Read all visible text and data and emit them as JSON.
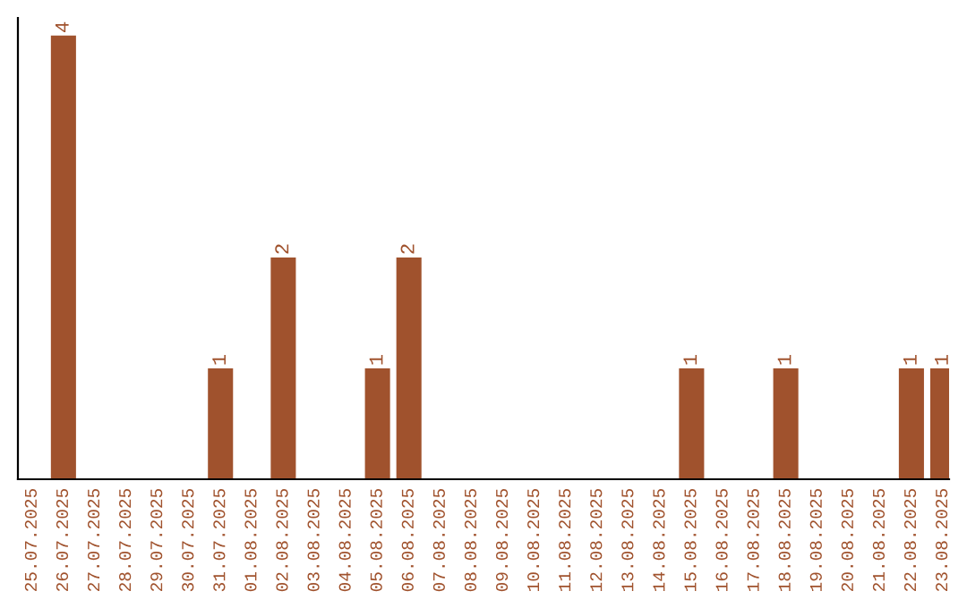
{
  "chart_data": {
    "type": "bar",
    "categories": [
      "25.07.2025",
      "26.07.2025",
      "27.07.2025",
      "28.07.2025",
      "29.07.2025",
      "30.07.2025",
      "31.07.2025",
      "01.08.2025",
      "02.08.2025",
      "03.08.2025",
      "04.08.2025",
      "05.08.2025",
      "06.08.2025",
      "07.08.2025",
      "08.08.2025",
      "09.08.2025",
      "10.08.2025",
      "11.08.2025",
      "12.08.2025",
      "13.08.2025",
      "14.08.2025",
      "15.08.2025",
      "16.08.2025",
      "17.08.2025",
      "18.08.2025",
      "19.08.2025",
      "20.08.2025",
      "21.08.2025",
      "22.08.2025",
      "23.08.2025"
    ],
    "values": [
      0,
      4,
      0,
      0,
      0,
      0,
      1,
      0,
      2,
      0,
      0,
      1,
      2,
      0,
      0,
      0,
      0,
      0,
      0,
      0,
      0,
      1,
      0,
      0,
      1,
      0,
      0,
      0,
      1,
      1
    ],
    "value_labels": [
      null,
      "4",
      null,
      null,
      null,
      null,
      "1",
      null,
      "2",
      null,
      null,
      "1",
      "2",
      null,
      null,
      null,
      null,
      null,
      null,
      null,
      null,
      "1",
      null,
      null,
      "1",
      null,
      null,
      null,
      "1",
      "1"
    ],
    "color": "#a0522d",
    "ylim": [
      0,
      4.16
    ],
    "tick_labels": "x",
    "grid": false,
    "legend": false
  }
}
